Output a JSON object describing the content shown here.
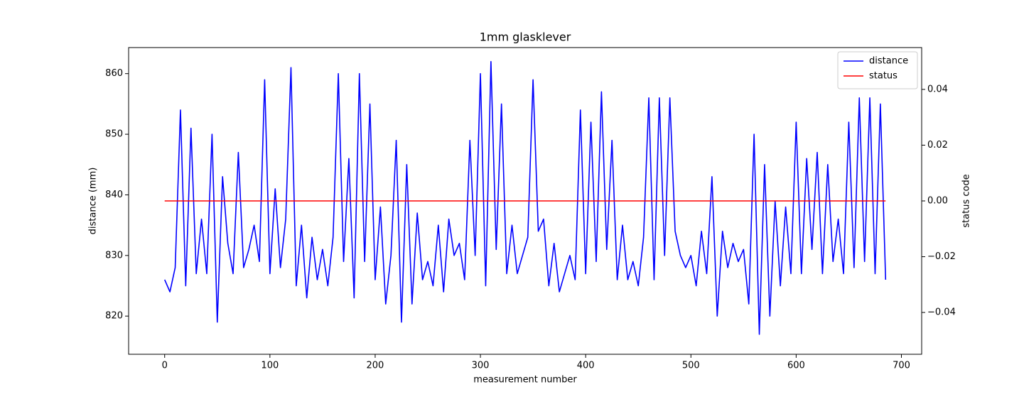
{
  "chart_data": {
    "type": "line",
    "title": "1mm glasklever",
    "x_label": "measurement number",
    "y_label": "distance (mm)",
    "y2_label": "status code",
    "x": [
      0,
      5,
      10,
      15,
      20,
      25,
      30,
      35,
      40,
      45,
      50,
      55,
      60,
      65,
      70,
      75,
      80,
      85,
      90,
      95,
      100,
      105,
      110,
      115,
      120,
      125,
      130,
      135,
      140,
      145,
      150,
      155,
      160,
      165,
      170,
      175,
      180,
      185,
      190,
      195,
      200,
      205,
      210,
      215,
      220,
      225,
      230,
      235,
      240,
      245,
      250,
      255,
      260,
      265,
      270,
      275,
      280,
      285,
      290,
      295,
      300,
      305,
      310,
      315,
      320,
      325,
      330,
      335,
      340,
      345,
      350,
      355,
      360,
      365,
      370,
      375,
      380,
      385,
      390,
      395,
      400,
      405,
      410,
      415,
      420,
      425,
      430,
      435,
      440,
      445,
      450,
      455,
      460,
      465,
      470,
      475,
      480,
      485,
      490,
      495,
      500,
      505,
      510,
      515,
      520,
      525,
      530,
      535,
      540,
      545,
      550,
      555,
      560,
      565,
      570,
      575,
      580,
      585,
      590,
      595,
      600,
      605,
      610,
      615,
      620,
      625,
      630,
      635,
      640,
      645,
      650,
      655,
      660,
      665,
      670,
      675,
      680,
      685
    ],
    "series": [
      {
        "name": "distance",
        "color": "#0000ff",
        "values": [
          826,
          824,
          828,
          854,
          825,
          851,
          827,
          836,
          827,
          850,
          819,
          843,
          832,
          827,
          847,
          828,
          831,
          835,
          829,
          859,
          827,
          841,
          828,
          836,
          861,
          825,
          835,
          823,
          833,
          826,
          831,
          825,
          833,
          860,
          829,
          846,
          823,
          860,
          829,
          855,
          826,
          838,
          822,
          830,
          849,
          819,
          845,
          822,
          837,
          826,
          829,
          825,
          835,
          824,
          836,
          830,
          832,
          826,
          849,
          830,
          860,
          825,
          862,
          831,
          855,
          827,
          835,
          827,
          830,
          833,
          859,
          834,
          836,
          825,
          832,
          824,
          827,
          830,
          826,
          854,
          827,
          852,
          829,
          857,
          831,
          849,
          826,
          835,
          826,
          829,
          825,
          833,
          856,
          826,
          856,
          830,
          856,
          834,
          830,
          828,
          830,
          825,
          834,
          827,
          843,
          820,
          834,
          828,
          832,
          829,
          831,
          822,
          850,
          817,
          845,
          820,
          839,
          825,
          838,
          827,
          852,
          827,
          846,
          831,
          847,
          827,
          845,
          829,
          836,
          827,
          852,
          828,
          856,
          829,
          856,
          827,
          855,
          826
        ]
      },
      {
        "name": "status",
        "color": "#ff0000",
        "axis": "y2",
        "values": [
          0,
          0,
          0,
          0,
          0,
          0,
          0,
          0,
          0,
          0,
          0,
          0,
          0,
          0,
          0,
          0,
          0,
          0,
          0,
          0,
          0,
          0,
          0,
          0,
          0,
          0,
          0,
          0,
          0,
          0,
          0,
          0,
          0,
          0,
          0,
          0,
          0,
          0,
          0,
          0,
          0,
          0,
          0,
          0,
          0,
          0,
          0,
          0,
          0,
          0,
          0,
          0,
          0,
          0,
          0,
          0,
          0,
          0,
          0,
          0,
          0,
          0,
          0,
          0,
          0,
          0,
          0,
          0,
          0,
          0,
          0,
          0,
          0,
          0,
          0,
          0,
          0,
          0,
          0,
          0,
          0,
          0,
          0,
          0,
          0,
          0,
          0,
          0,
          0,
          0,
          0,
          0,
          0,
          0,
          0,
          0,
          0,
          0,
          0,
          0,
          0,
          0,
          0,
          0,
          0,
          0,
          0,
          0,
          0,
          0,
          0,
          0,
          0,
          0,
          0,
          0,
          0,
          0,
          0,
          0,
          0,
          0,
          0,
          0,
          0,
          0,
          0,
          0,
          0,
          0,
          0,
          0,
          0,
          0,
          0,
          0,
          0,
          0
        ]
      }
    ],
    "xlim": [
      -34.25,
      719.25
    ],
    "xticks": [
      0,
      100,
      200,
      300,
      400,
      500,
      600,
      700
    ],
    "ylim": [
      813.7,
      864.3
    ],
    "yticks": [
      820,
      830,
      840,
      850,
      860
    ],
    "y2lim": [
      -0.055,
      0.055
    ],
    "y2ticks": [
      {
        "value": -0.04,
        "label": "−0.04"
      },
      {
        "value": -0.02,
        "label": "−0.02"
      },
      {
        "value": 0,
        "label": "0.00"
      },
      {
        "value": 0.02,
        "label": "0.02"
      },
      {
        "value": 0.04,
        "label": "0.04"
      }
    ],
    "legend": "upper right",
    "grid": false
  }
}
